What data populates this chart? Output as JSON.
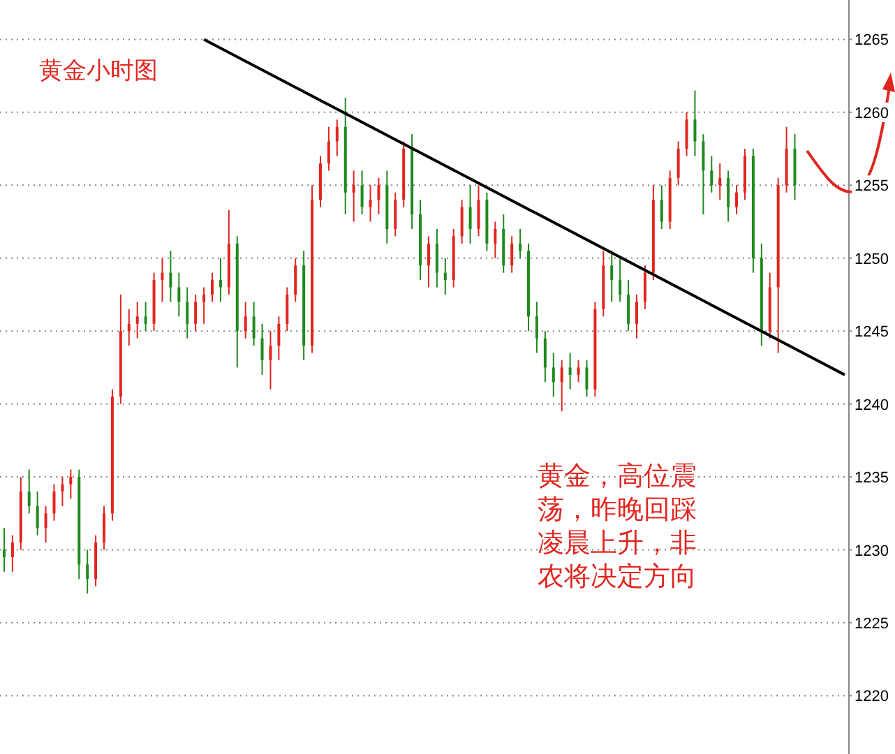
{
  "chart_data": {
    "type": "candlestick",
    "title": "黄金小时图",
    "annotations": [
      "黄金，高位震荡，昨晚回踩凌晨上升，非农将决定方向"
    ],
    "categories": [
      null,
      null,
      null,
      null,
      null,
      null,
      null,
      null,
      null,
      null,
      null,
      null,
      null,
      null,
      null,
      null,
      null,
      null,
      null,
      null,
      null,
      null,
      null,
      null,
      null,
      null,
      null,
      null,
      null,
      null,
      null,
      null,
      null,
      null,
      null,
      null,
      null,
      null,
      null,
      null,
      null,
      null,
      null,
      null,
      null,
      null,
      null,
      null,
      null,
      null,
      null,
      null,
      null,
      null,
      null,
      null,
      null,
      null,
      null,
      null,
      null,
      null,
      null,
      null,
      null,
      null,
      null,
      null,
      null,
      null,
      null,
      null,
      null,
      null,
      null,
      null,
      null,
      null,
      null,
      null,
      null,
      null,
      null,
      null,
      null,
      null,
      null,
      null,
      null,
      null,
      null,
      null,
      null,
      null,
      null,
      null,
      null,
      null,
      null,
      null,
      null,
      null
    ],
    "ohlc": [
      [
        1230,
        1231.5,
        1228.5,
        1229.5
      ],
      [
        1229.5,
        1231,
        1228.5,
        1230.5
      ],
      [
        1230.5,
        1235,
        1230,
        1234
      ],
      [
        1234,
        1235.5,
        1232.5,
        1233
      ],
      [
        1233,
        1234,
        1231,
        1231.5
      ],
      [
        1231.5,
        1233,
        1230.5,
        1232.5
      ],
      [
        1232.5,
        1234.5,
        1232,
        1234
      ],
      [
        1234,
        1235,
        1233,
        1234.5
      ],
      [
        1234.5,
        1235.5,
        1233.5,
        1235
      ],
      [
        1235,
        1235.5,
        1228,
        1229
      ],
      [
        1229,
        1230,
        1227,
        1228
      ],
      [
        1228,
        1231,
        1227.5,
        1230.5
      ],
      [
        1230.5,
        1233,
        1230,
        1232.5
      ],
      [
        1232.5,
        1241,
        1232,
        1240.5
      ],
      [
        1240.5,
        1247.5,
        1240,
        1245
      ],
      [
        1245,
        1246.5,
        1244,
        1245.5
      ],
      [
        1245.5,
        1247,
        1244.5,
        1246
      ],
      [
        1246,
        1247,
        1245,
        1245.5
      ],
      [
        1245.5,
        1249,
        1245,
        1248.5
      ],
      [
        1248.5,
        1250,
        1247,
        1249
      ],
      [
        1249,
        1250.5,
        1247,
        1248
      ],
      [
        1248,
        1249,
        1246,
        1247
      ],
      [
        1247,
        1248,
        1244.5,
        1245.5
      ],
      [
        1245.5,
        1247.5,
        1245,
        1247
      ],
      [
        1247,
        1248,
        1245.5,
        1247.5
      ],
      [
        1247.5,
        1249,
        1247,
        1248.5
      ],
      [
        1248.5,
        1250,
        1247,
        1248
      ],
      [
        1248,
        1253.3,
        1247.5,
        1251
      ],
      [
        1251,
        1251.5,
        1242.5,
        1245
      ],
      [
        1245,
        1247,
        1244.5,
        1246
      ],
      [
        1246,
        1247,
        1244,
        1244.5
      ],
      [
        1244.5,
        1245.5,
        1242,
        1243
      ],
      [
        1243,
        1245,
        1241,
        1244
      ],
      [
        1244,
        1246,
        1243,
        1245.5
      ],
      [
        1245.5,
        1248,
        1245,
        1247.5
      ],
      [
        1247.5,
        1250,
        1247,
        1249.5
      ],
      [
        1249.5,
        1250.5,
        1243,
        1244
      ],
      [
        1244,
        1255,
        1243.5,
        1254
      ],
      [
        1254,
        1257,
        1253.5,
        1256.5
      ],
      [
        1256.5,
        1259,
        1256,
        1258
      ],
      [
        1258,
        1259.5,
        1257,
        1259
      ],
      [
        1259,
        1261,
        1253,
        1254.5
      ],
      [
        1254.5,
        1256,
        1252.5,
        1255
      ],
      [
        1255,
        1256,
        1253,
        1253.5
      ],
      [
        1253.5,
        1255,
        1252.5,
        1254
      ],
      [
        1254,
        1255.5,
        1253,
        1255
      ],
      [
        1255,
        1256,
        1251,
        1252
      ],
      [
        1252,
        1254.5,
        1251.5,
        1254
      ],
      [
        1254,
        1258,
        1253.5,
        1257.5
      ],
      [
        1257.5,
        1258.5,
        1252,
        1253
      ],
      [
        1253,
        1254,
        1248.5,
        1249.5
      ],
      [
        1249.5,
        1251.5,
        1248,
        1251
      ],
      [
        1251,
        1252,
        1248,
        1249
      ],
      [
        1249,
        1250,
        1247.5,
        1248.5
      ],
      [
        1248.5,
        1252,
        1248,
        1251.5
      ],
      [
        1251.5,
        1254,
        1251,
        1253.5
      ],
      [
        1253.5,
        1255,
        1251,
        1252
      ],
      [
        1252,
        1255,
        1251.5,
        1254
      ],
      [
        1254,
        1254.5,
        1250.5,
        1251
      ],
      [
        1251,
        1252.5,
        1250,
        1252
      ],
      [
        1252,
        1253,
        1249,
        1249.5
      ],
      [
        1249.5,
        1251.5,
        1249,
        1251
      ],
      [
        1251,
        1252,
        1250,
        1250.5
      ],
      [
        1250.5,
        1251,
        1245,
        1246
      ],
      [
        1246,
        1247,
        1243.5,
        1244.5
      ],
      [
        1244.5,
        1245,
        1241.5,
        1242.5
      ],
      [
        1242.5,
        1243.5,
        1240.5,
        1241.5
      ],
      [
        1241.5,
        1243,
        1239.5,
        1242.5
      ],
      [
        1242.5,
        1243.5,
        1241,
        1242
      ],
      [
        1242,
        1243,
        1241.5,
        1242.5
      ],
      [
        1242.5,
        1243,
        1240.5,
        1241
      ],
      [
        1241,
        1247,
        1240.5,
        1246.5
      ],
      [
        1246.5,
        1250.5,
        1246,
        1249.5
      ],
      [
        1249.5,
        1250.5,
        1247,
        1248.5
      ],
      [
        1248.5,
        1250,
        1247,
        1247.5
      ],
      [
        1247.5,
        1248.5,
        1245,
        1245.5
      ],
      [
        1245.5,
        1247.5,
        1244.5,
        1247
      ],
      [
        1247,
        1249.5,
        1246.5,
        1249
      ],
      [
        1249,
        1255,
        1248.5,
        1254
      ],
      [
        1254,
        1255,
        1252,
        1252.5
      ],
      [
        1252.5,
        1256,
        1252,
        1255.5
      ],
      [
        1255.5,
        1258,
        1255,
        1257.5
      ],
      [
        1257.5,
        1260,
        1257,
        1259.5
      ],
      [
        1259.5,
        1261.5,
        1257,
        1258
      ],
      [
        1258,
        1258.5,
        1253,
        1256
      ],
      [
        1256,
        1257,
        1254.5,
        1255
      ],
      [
        1255,
        1256.5,
        1254,
        1255.5
      ],
      [
        1255.5,
        1256,
        1252.5,
        1253.5
      ],
      [
        1253.5,
        1255,
        1253,
        1254.5
      ],
      [
        1254.5,
        1257.5,
        1254,
        1257
      ],
      [
        1257,
        1257.5,
        1249,
        1250
      ],
      [
        1250,
        1251,
        1244,
        1245
      ],
      [
        1245,
        1249,
        1244.5,
        1248
      ],
      [
        1248,
        1255.5,
        1243.5,
        1255
      ],
      [
        1255,
        1259,
        1254.5,
        1257.5
      ],
      [
        1257.5,
        1258.5,
        1254,
        1255
      ],
      null,
      null,
      null,
      null,
      null,
      null
    ],
    "colors": [
      "#1f8a1f",
      "#e0261f",
      "#e0261f",
      "#1f8a1f",
      "#1f8a1f",
      "#e0261f",
      "#e0261f",
      "#e0261f",
      "#e0261f",
      "#1f8a1f",
      "#1f8a1f",
      "#e0261f",
      "#e0261f",
      "#e0261f",
      "#e0261f",
      "#e0261f",
      "#e0261f",
      "#1f8a1f",
      "#e0261f",
      "#e0261f",
      "#1f8a1f",
      "#1f8a1f",
      "#1f8a1f",
      "#e0261f",
      "#e0261f",
      "#e0261f",
      "#1f8a1f",
      "#e0261f",
      "#1f8a1f",
      "#e0261f",
      "#1f8a1f",
      "#1f8a1f",
      "#e0261f",
      "#e0261f",
      "#e0261f",
      "#e0261f",
      "#1f8a1f",
      "#e0261f",
      "#e0261f",
      "#e0261f",
      "#e0261f",
      "#1f8a1f",
      "#e0261f",
      "#1f8a1f",
      "#e0261f",
      "#e0261f",
      "#1f8a1f",
      "#e0261f",
      "#e0261f",
      "#1f8a1f",
      "#1f8a1f",
      "#e0261f",
      "#1f8a1f",
      "#1f8a1f",
      "#e0261f",
      "#e0261f",
      "#1f8a1f",
      "#e0261f",
      "#1f8a1f",
      "#e0261f",
      "#1f8a1f",
      "#e0261f",
      "#1f8a1f",
      "#1f8a1f",
      "#1f8a1f",
      "#1f8a1f",
      "#1f8a1f",
      "#e0261f",
      "#1f8a1f",
      "#e0261f",
      "#1f8a1f",
      "#e0261f",
      "#e0261f",
      "#1f8a1f",
      "#1f8a1f",
      "#1f8a1f",
      "#e0261f",
      "#e0261f",
      "#e0261f",
      "#1f8a1f",
      "#e0261f",
      "#e0261f",
      "#e0261f",
      "#1f8a1f",
      "#1f8a1f",
      "#1f8a1f",
      "#e0261f",
      "#1f8a1f",
      "#e0261f",
      "#e0261f",
      "#1f8a1f",
      "#1f8a1f",
      "#e0261f",
      "#e0261f",
      "#e0261f",
      "#1f8a1f",
      null,
      null,
      null,
      null,
      null,
      null
    ],
    "series": [
      {
        "type": "line",
        "color": "#000000",
        "values": [
          null,
          null,
          null,
          null,
          null,
          null,
          null,
          null,
          null,
          null,
          null,
          null,
          null,
          null,
          null,
          null,
          null,
          null,
          null,
          null,
          null,
          null,
          null,
          null,
          1265,
          null,
          null,
          null,
          null,
          null,
          null,
          null,
          null,
          null,
          null,
          null,
          null,
          null,
          null,
          null,
          null,
          null,
          null,
          null,
          null,
          null,
          null,
          null,
          null,
          null,
          null,
          null,
          null,
          null,
          null,
          null,
          null,
          null,
          null,
          null,
          null,
          null,
          null,
          null,
          null,
          null,
          null,
          null,
          null,
          null,
          null,
          null,
          null,
          null,
          null,
          null,
          null,
          null,
          null,
          null,
          null,
          null,
          null,
          null,
          null,
          null,
          null,
          null,
          null,
          null,
          null,
          null,
          null,
          null,
          null,
          null,
          null,
          null,
          null,
          null,
          null,
          1242
        ]
      }
    ],
    "ylim": [
      1216,
      1267.7
    ],
    "yticks": [
      1220,
      1225,
      1230,
      1235,
      1240,
      1245,
      1250,
      1255,
      1260,
      1265
    ],
    "grid": "y"
  }
}
